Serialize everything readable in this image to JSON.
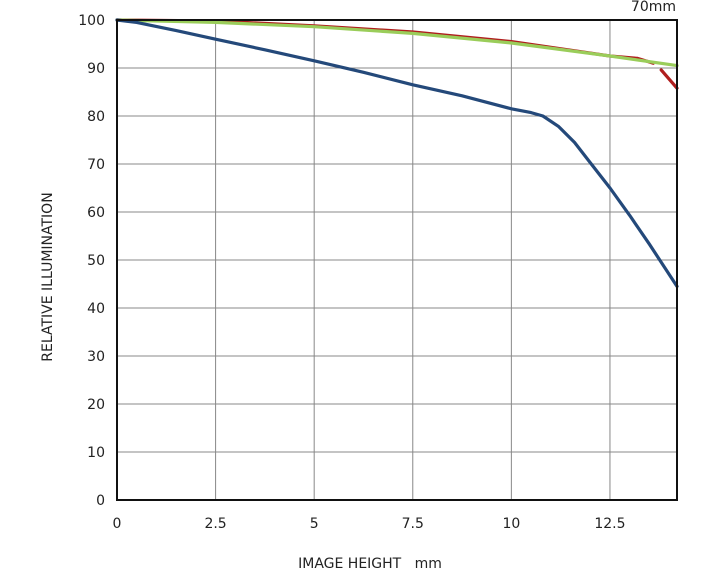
{
  "chart_data": {
    "type": "line",
    "title": "70mm",
    "xlabel": "IMAGE HEIGHT   mm",
    "ylabel": "RELATIVE ILLUMINATION",
    "xlim": [
      0,
      14.2
    ],
    "ylim": [
      0,
      100
    ],
    "xticks": [
      0,
      2.5,
      5,
      7.5,
      10,
      12.5
    ],
    "xtick_labels": [
      "0",
      "2.5",
      "5",
      "7.5",
      "10",
      "12.5"
    ],
    "yticks": [
      0,
      10,
      20,
      30,
      40,
      50,
      60,
      70,
      80,
      90,
      100
    ],
    "ytick_labels": [
      "0",
      "10",
      "20",
      "30",
      "40",
      "50",
      "60",
      "70",
      "80",
      "90",
      "100"
    ],
    "grid": true,
    "series": [
      {
        "name": "red",
        "color": "#b01e1e",
        "x": [
          0,
          2.5,
          5,
          7.5,
          10,
          12.5,
          13.2,
          13.6
        ],
        "y": [
          100,
          99.8,
          98.8,
          97.5,
          95.5,
          92.5,
          92,
          91
        ]
      },
      {
        "name": "red-tail",
        "color": "#b01e1e",
        "x": [
          13.8,
          14.2
        ],
        "y": [
          89.6,
          85.8
        ]
      },
      {
        "name": "green",
        "color": "#9acd5a",
        "x": [
          0,
          2.5,
          5,
          7.5,
          10,
          12.5,
          14.2
        ],
        "y": [
          100,
          99.5,
          98.6,
          97.2,
          95.2,
          92.5,
          90.5
        ]
      },
      {
        "name": "blue",
        "color": "#24497a",
        "x": [
          0,
          0.5,
          1.5,
          2.5,
          3.75,
          5,
          6.25,
          7.5,
          8.75,
          10,
          10.5,
          10.8,
          11.2,
          11.6,
          12,
          12.5,
          13,
          13.5,
          14.2
        ],
        "y": [
          100,
          99.5,
          97.8,
          96,
          93.8,
          91.5,
          89.1,
          86.5,
          84.2,
          81.5,
          80.7,
          80,
          77.8,
          74.5,
          70.3,
          65,
          59.3,
          53.3,
          44.5
        ]
      }
    ]
  }
}
